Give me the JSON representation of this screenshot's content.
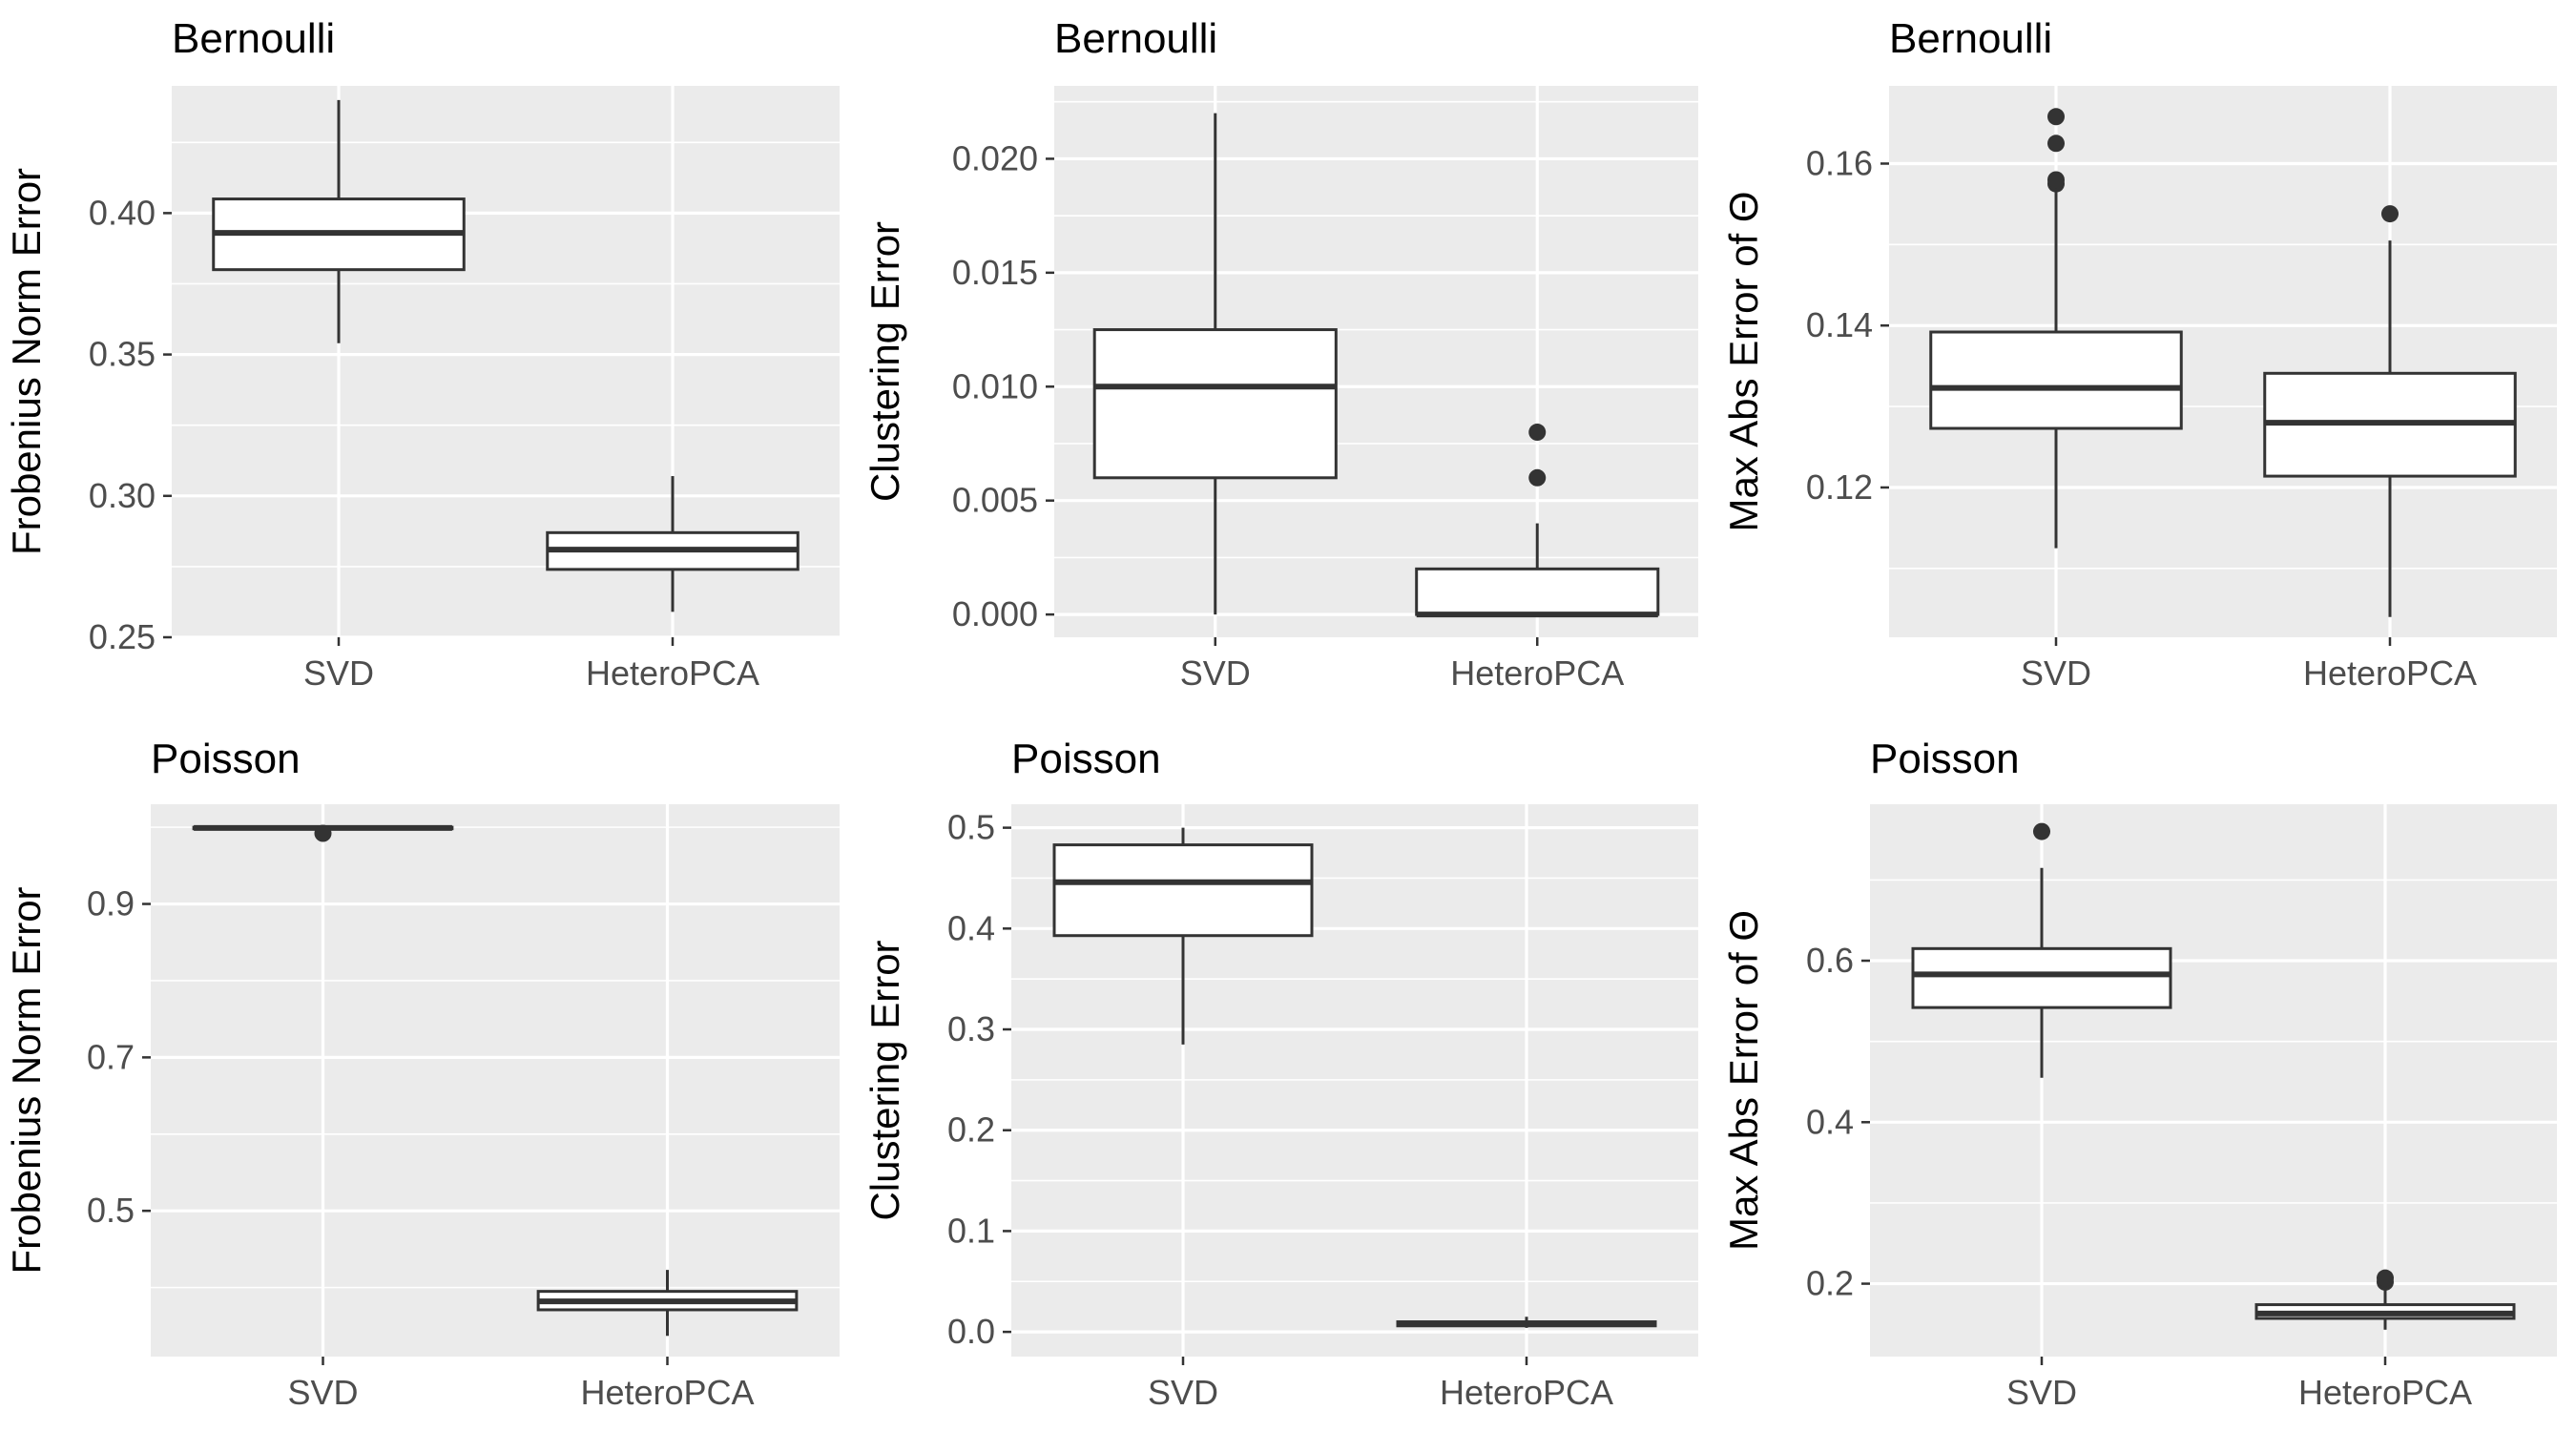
{
  "chart_data": [
    {
      "type": "boxplot",
      "title": "Bernoulli",
      "ylabel": "Frobenius Norm Error",
      "categories": [
        "SVD",
        "HeteroPCA"
      ],
      "ylim": [
        0.25,
        0.445
      ],
      "yticks": [
        "0.25",
        "0.30",
        "0.35",
        "0.40"
      ],
      "boxes": [
        {
          "category": "SVD",
          "min": 0.354,
          "q1": 0.38,
          "median": 0.393,
          "q3": 0.405,
          "max": 0.44,
          "outliers": []
        },
        {
          "category": "HeteroPCA",
          "min": 0.259,
          "q1": 0.274,
          "median": 0.281,
          "q3": 0.287,
          "max": 0.307,
          "outliers": []
        }
      ]
    },
    {
      "type": "boxplot",
      "title": "Bernoulli",
      "ylabel": "Clustering Error",
      "categories": [
        "SVD",
        "HeteroPCA"
      ],
      "ylim": [
        -0.001,
        0.0232
      ],
      "yticks": [
        "0.000",
        "0.005",
        "0.010",
        "0.015",
        "0.020"
      ],
      "boxes": [
        {
          "category": "SVD",
          "min": 0.0,
          "q1": 0.006,
          "median": 0.01,
          "q3": 0.0125,
          "max": 0.022,
          "outliers": []
        },
        {
          "category": "HeteroPCA",
          "min": 0.0,
          "q1": 0.0,
          "median": 0.0,
          "q3": 0.002,
          "max": 0.004,
          "outliers": [
            0.006,
            0.008
          ]
        }
      ]
    },
    {
      "type": "boxplot",
      "title": "Bernoulli",
      "ylabel": "Max Abs Error of Θ",
      "categories": [
        "SVD",
        "HeteroPCA"
      ],
      "ylim": [
        0.1015,
        0.1696
      ],
      "yticks": [
        "0.12",
        "0.14",
        "0.16"
      ],
      "boxes": [
        {
          "category": "SVD",
          "min": 0.1125,
          "q1": 0.1273,
          "median": 0.1323,
          "q3": 0.1392,
          "max": 0.1565,
          "outliers": [
            0.1575,
            0.158,
            0.1625,
            0.1658
          ]
        },
        {
          "category": "HeteroPCA",
          "min": 0.104,
          "q1": 0.1214,
          "median": 0.128,
          "q3": 0.1341,
          "max": 0.1505,
          "outliers": [
            0.1538
          ]
        }
      ]
    },
    {
      "type": "boxplot",
      "title": "Poisson",
      "ylabel": "Frobenius Norm Error",
      "categories": [
        "SVD",
        "HeteroPCA"
      ],
      "ylim": [
        0.31,
        1.03
      ],
      "yticks": [
        "0.5",
        "0.7",
        "0.9"
      ],
      "boxes": [
        {
          "category": "SVD",
          "min": 0.997,
          "q1": 0.998,
          "median": 0.999,
          "q3": 1.0,
          "max": 1.0,
          "outliers": [
            0.992
          ]
        },
        {
          "category": "HeteroPCA",
          "min": 0.337,
          "q1": 0.371,
          "median": 0.382,
          "q3": 0.395,
          "max": 0.423,
          "outliers": []
        }
      ]
    },
    {
      "type": "boxplot",
      "title": "Poisson",
      "ylabel": "Clustering Error",
      "categories": [
        "SVD",
        "HeteroPCA"
      ],
      "ylim": [
        -0.0245,
        0.5233
      ],
      "yticks": [
        "0.0",
        "0.1",
        "0.2",
        "0.3",
        "0.4",
        "0.5"
      ],
      "boxes": [
        {
          "category": "SVD",
          "min": 0.285,
          "q1": 0.393,
          "median": 0.446,
          "q3": 0.483,
          "max": 0.5,
          "outliers": []
        },
        {
          "category": "HeteroPCA",
          "min": 0.004,
          "q1": 0.006,
          "median": 0.008,
          "q3": 0.01,
          "max": 0.015,
          "outliers": []
        }
      ]
    },
    {
      "type": "boxplot",
      "title": "Poisson",
      "ylabel": "Max Abs Error of Θ",
      "categories": [
        "SVD",
        "HeteroPCA"
      ],
      "ylim": [
        0.1097,
        0.7938
      ],
      "yticks": [
        "0.2",
        "0.4",
        "0.6"
      ],
      "boxes": [
        {
          "category": "SVD",
          "min": 0.455,
          "q1": 0.542,
          "median": 0.583,
          "q3": 0.615,
          "max": 0.715,
          "outliers": [
            0.76
          ]
        },
        {
          "category": "HeteroPCA",
          "min": 0.143,
          "q1": 0.157,
          "median": 0.163,
          "q3": 0.174,
          "max": 0.197,
          "outliers": [
            0.202,
            0.207
          ]
        }
      ]
    }
  ]
}
